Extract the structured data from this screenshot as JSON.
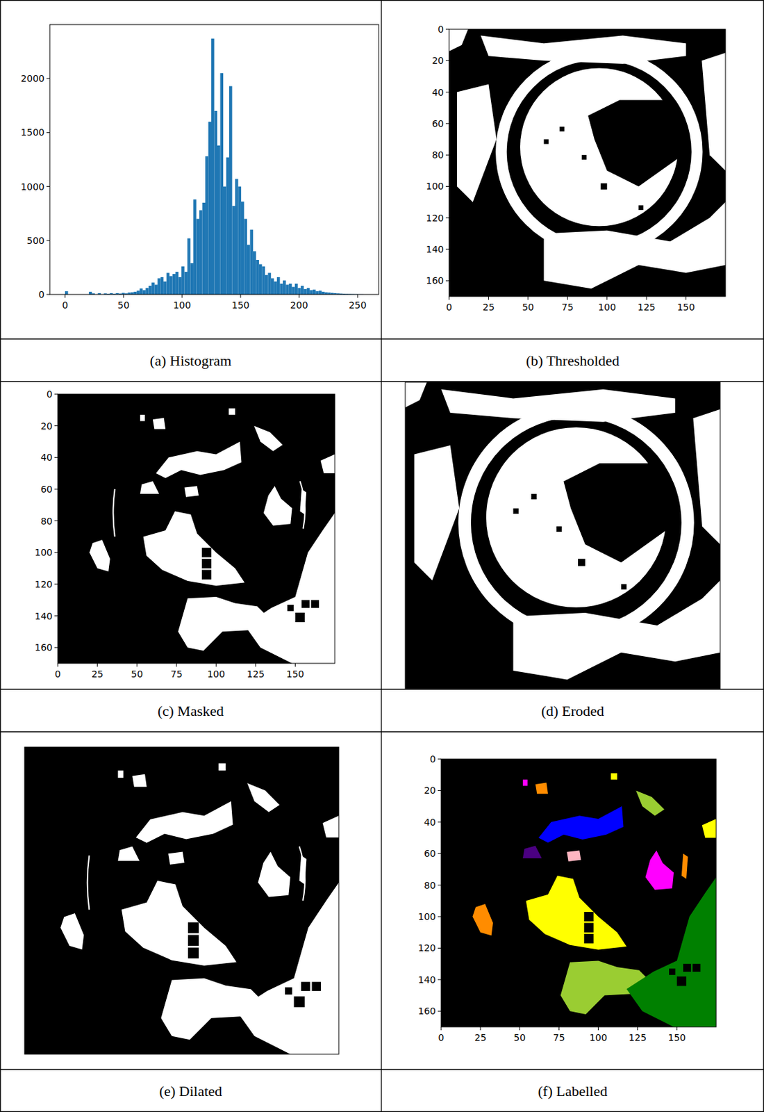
{
  "chart_data": [
    {
      "type": "histogram",
      "title": "(a) Histogram",
      "color": "#1f77b4",
      "bins": [
        0,
        2.55,
        5.1,
        7.65,
        10.2,
        12.75,
        15.3,
        17.85,
        20.4,
        22.95,
        25.5,
        28.05,
        30.6,
        33.15,
        35.7,
        38.25,
        40.8,
        43.35,
        45.9,
        48.45,
        51,
        53.55,
        56.1,
        58.65,
        61.2,
        63.75,
        66.3,
        68.85,
        71.4,
        73.95,
        76.5,
        79.05,
        81.6,
        84.15,
        86.7,
        89.25,
        91.8,
        94.35,
        96.9,
        99.45,
        102,
        104.55,
        107.1,
        109.65,
        112.2,
        114.75,
        117.3,
        119.85,
        122.4,
        124.95,
        127.5,
        130.05,
        132.6,
        135.15,
        137.7,
        140.25,
        142.8,
        145.35,
        147.9,
        150.45,
        153,
        155.55,
        158.1,
        160.65,
        163.2,
        165.75,
        168.3,
        170.85,
        173.4,
        175.95,
        178.5,
        181.05,
        183.6,
        186.15,
        188.7,
        191.25,
        193.8,
        196.35,
        198.9,
        201.45,
        204,
        206.55,
        209.1,
        211.65,
        214.2,
        216.75,
        219.3,
        221.85,
        224.4,
        226.95,
        229.5,
        232.05,
        234.6,
        237.15,
        239.7,
        242.25,
        244.8,
        247.35,
        249.9,
        252.45,
        255
      ],
      "counts": [
        30,
        0,
        0,
        0,
        0,
        0,
        0,
        0,
        25,
        10,
        0,
        12,
        0,
        10,
        5,
        12,
        5,
        12,
        8,
        15,
        10,
        18,
        20,
        25,
        35,
        55,
        40,
        60,
        80,
        110,
        90,
        150,
        160,
        120,
        200,
        170,
        190,
        210,
        160,
        260,
        210,
        520,
        290,
        880,
        700,
        780,
        850,
        1280,
        1600,
        2370,
        1700,
        1380,
        2050,
        1000,
        1270,
        1930,
        820,
        1070,
        1000,
        860,
        700,
        460,
        600,
        400,
        320,
        280,
        260,
        180,
        200,
        150,
        120,
        160,
        100,
        130,
        90,
        100,
        70,
        100,
        60,
        80,
        50,
        60,
        40,
        45,
        30,
        35,
        25,
        20,
        18,
        15,
        12,
        10,
        8,
        6,
        5,
        4,
        3,
        2,
        1,
        1
      ],
      "xlim": [
        -13,
        268
      ],
      "ylim": [
        0,
        2500
      ],
      "xticks": [
        0,
        50,
        100,
        150,
        200,
        250
      ],
      "yticks": [
        0,
        500,
        1000,
        1500,
        2000
      ]
    },
    {
      "type": "image",
      "title": "(b) Thresholded",
      "xlim": [
        0,
        175
      ],
      "ylim": [
        170,
        0
      ],
      "xticks": [
        0,
        25,
        50,
        75,
        100,
        125,
        150
      ],
      "yticks": [
        0,
        20,
        40,
        60,
        80,
        100,
        120,
        140,
        160
      ]
    },
    {
      "type": "image",
      "title": "(c) Masked",
      "xlim": [
        0,
        175
      ],
      "ylim": [
        170,
        0
      ],
      "xticks": [
        0,
        25,
        50,
        75,
        100,
        125,
        150
      ],
      "yticks": [
        0,
        20,
        40,
        60,
        80,
        100,
        120,
        140,
        160
      ]
    },
    {
      "type": "image",
      "title": "(d) Eroded",
      "xlim": [
        0,
        175
      ],
      "ylim": [
        170,
        0
      ],
      "tick_labels": false
    },
    {
      "type": "image",
      "title": "(e) Dilated",
      "xlim": [
        0,
        175
      ],
      "ylim": [
        170,
        0
      ],
      "tick_labels": false
    },
    {
      "type": "image",
      "title": "(f) Labelled",
      "xlim": [
        0,
        175
      ],
      "ylim": [
        170,
        0
      ],
      "xticks": [
        0,
        25,
        50,
        75,
        100,
        125,
        150
      ],
      "yticks": [
        0,
        20,
        40,
        60,
        80,
        100,
        120,
        140,
        160
      ]
    }
  ]
}
